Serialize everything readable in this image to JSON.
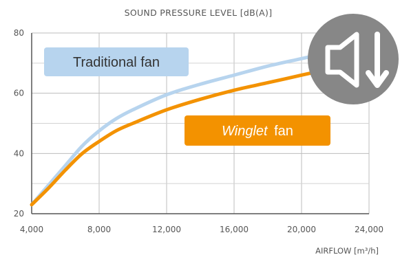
{
  "chart_data": {
    "type": "line",
    "title": "SOUND PRESSURE LEVEL [dB(A)]",
    "xlabel": "AIRFLOW [m³/h]",
    "ylabel": "",
    "xlim": [
      4000,
      24000
    ],
    "ylim": [
      20,
      80
    ],
    "x_ticks": [
      "4,000",
      "8,000",
      "12,000",
      "16,000",
      "20,000",
      "24,000"
    ],
    "y_ticks": [
      "20",
      "40",
      "60",
      "80"
    ],
    "grid": true,
    "series": [
      {
        "name": "Traditional fan",
        "color": "#b7d4ee",
        "x": [
          4000,
          5000,
          6000,
          7000,
          8000,
          9000,
          10000,
          12000,
          14000,
          16000,
          18000,
          20000,
          22000
        ],
        "y": [
          23,
          29.5,
          36,
          42.5,
          47.5,
          51.5,
          54.5,
          59.5,
          63,
          66,
          69,
          71.5,
          74
        ]
      },
      {
        "name": "Winglet fan",
        "name_parts": [
          "Winglet",
          "fan"
        ],
        "color": "#f39200",
        "x": [
          4000,
          5000,
          6000,
          7000,
          8000,
          9000,
          10000,
          12000,
          14000,
          16000,
          18000,
          20000,
          22000
        ],
        "y": [
          23,
          28.5,
          34.5,
          40,
          44,
          47.5,
          50,
          54.5,
          58,
          61,
          63.5,
          66,
          68.5
        ]
      }
    ],
    "annotations": {
      "traditional_box_color": "#b7d4ee",
      "winglet_box_color": "#f39200",
      "icon": "speaker-volume-down-icon",
      "icon_color": "#878787"
    }
  }
}
